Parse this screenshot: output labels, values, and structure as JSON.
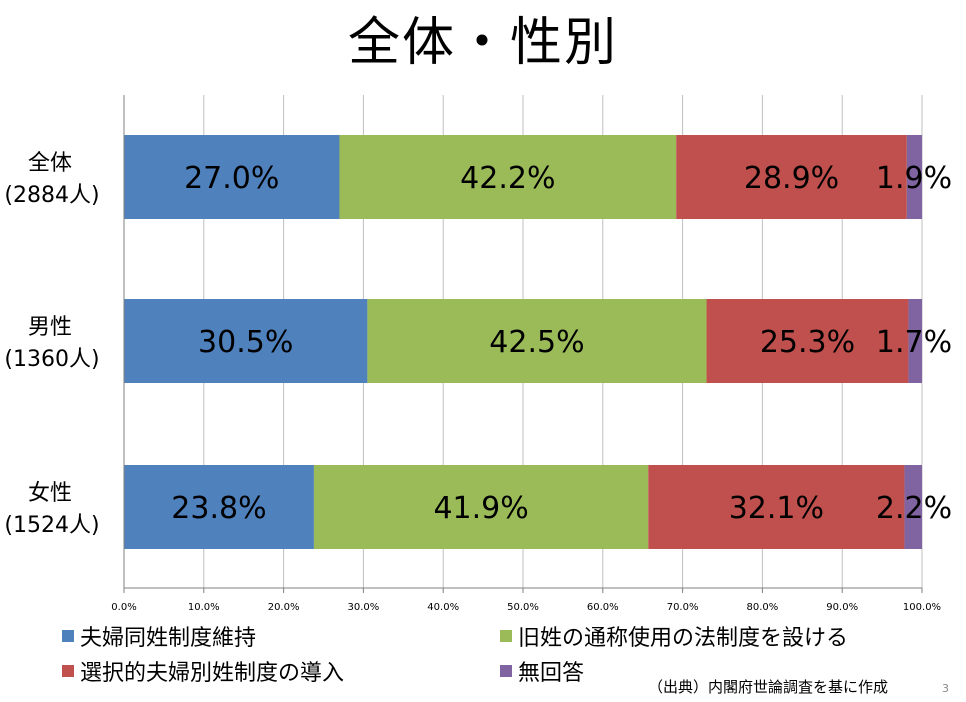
{
  "slide": {
    "title": "全体・性別",
    "source": "（出典）内閣府世論調査を基に作成",
    "page_number": "3"
  },
  "chart_data": {
    "type": "bar",
    "orientation": "horizontal",
    "stacked": true,
    "percent": true,
    "title": "全体・性別",
    "categories": [
      {
        "label": "全体",
        "sublabel": "(2884人)"
      },
      {
        "label": "男性",
        "sublabel": "(1360人)"
      },
      {
        "label": "女性",
        "sublabel": "(1524人)"
      }
    ],
    "series": [
      {
        "name": "夫婦同姓制度維持",
        "color": "#4F81BD",
        "values": [
          27.0,
          30.5,
          23.8
        ],
        "labels": [
          "27.0%",
          "30.5%",
          "23.8%"
        ]
      },
      {
        "name": "旧姓の通称使用の法制度を設ける",
        "color": "#9BBB59",
        "values": [
          42.2,
          42.5,
          41.9
        ],
        "labels": [
          "42.2%",
          "42.5%",
          "41.9%"
        ]
      },
      {
        "name": "選択的夫婦別姓制度の導入",
        "color": "#C0504D",
        "values": [
          28.9,
          25.3,
          32.1
        ],
        "labels": [
          "28.9%",
          "25.3%",
          "32.1%"
        ]
      },
      {
        "name": "無回答",
        "color": "#8064A2",
        "values": [
          1.9,
          1.7,
          2.2
        ],
        "labels": [
          "1.9%",
          "1.7%",
          "2.2%"
        ]
      }
    ],
    "x_ticks": [
      "0.0%",
      "10.0%",
      "20.0%",
      "30.0%",
      "40.0%",
      "50.0%",
      "60.0%",
      "70.0%",
      "80.0%",
      "90.0%",
      "100.0%"
    ],
    "xlim": [
      0,
      100
    ],
    "xlabel": "",
    "ylabel": "",
    "grid": true,
    "legend_position": "bottom"
  }
}
